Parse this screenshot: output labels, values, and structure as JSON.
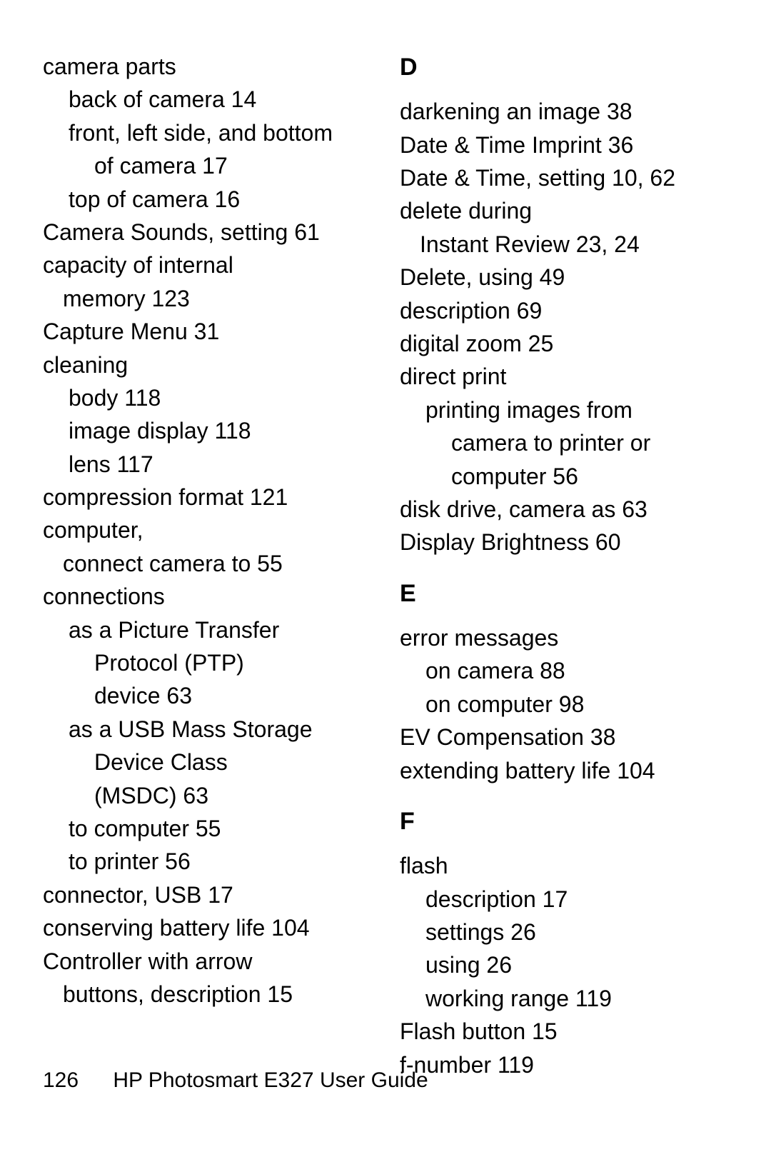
{
  "footer": {
    "page": "126",
    "title": "HP Photosmart E327 User Guide"
  },
  "left": [
    {
      "t": "camera parts",
      "cls": ""
    },
    {
      "t": "back of camera  14",
      "cls": "indent1"
    },
    {
      "t": "front, left side, and bottom",
      "cls": "indent1"
    },
    {
      "t": "of camera  17",
      "cls": "indent2"
    },
    {
      "t": "top of camera  16",
      "cls": "indent1"
    },
    {
      "t": "Camera Sounds, setting  61",
      "cls": ""
    },
    {
      "t": "capacity of internal",
      "cls": ""
    },
    {
      "t": "memory  123",
      "cls": "indent1",
      "style": "padding-left:28px"
    },
    {
      "t": "Capture Menu  31",
      "cls": ""
    },
    {
      "t": "cleaning",
      "cls": ""
    },
    {
      "t": "body  118",
      "cls": "indent1"
    },
    {
      "t": "image display  118",
      "cls": "indent1"
    },
    {
      "t": "lens  117",
      "cls": "indent1"
    },
    {
      "t": "compression format  121",
      "cls": ""
    },
    {
      "t": "computer,",
      "cls": ""
    },
    {
      "t": "connect camera to  55",
      "cls": "indent1",
      "style": "padding-left:28px"
    },
    {
      "t": "connections",
      "cls": ""
    },
    {
      "t": "as a Picture Transfer",
      "cls": "indent1"
    },
    {
      "t": "Protocol (PTP)",
      "cls": "indent2"
    },
    {
      "t": "device  63",
      "cls": "indent2"
    },
    {
      "t": "as a USB Mass Storage",
      "cls": "indent1"
    },
    {
      "t": "Device Class",
      "cls": "indent2"
    },
    {
      "t": "(MSDC)  63",
      "cls": "indent2"
    },
    {
      "t": "to computer  55",
      "cls": "indent1"
    },
    {
      "t": "to printer  56",
      "cls": "indent1"
    },
    {
      "t": "connector, USB  17",
      "cls": ""
    },
    {
      "t": "conserving battery life  104",
      "cls": ""
    },
    {
      "t": "Controller with arrow",
      "cls": ""
    },
    {
      "t": "buttons, description  15",
      "cls": "indent1",
      "style": "padding-left:28px"
    }
  ],
  "right": [
    {
      "head": "D",
      "first": true
    },
    {
      "t": "darkening an image  38",
      "cls": ""
    },
    {
      "t": "Date & Time Imprint  36",
      "cls": ""
    },
    {
      "t": "Date & Time, setting  10,  62",
      "cls": ""
    },
    {
      "t": "delete during",
      "cls": ""
    },
    {
      "t": "Instant Review  23,  24",
      "cls": "indent1",
      "style": "padding-left:28px"
    },
    {
      "t": "Delete, using  49",
      "cls": ""
    },
    {
      "t": "description  69",
      "cls": ""
    },
    {
      "t": "digital zoom  25",
      "cls": ""
    },
    {
      "t": "direct print",
      "cls": ""
    },
    {
      "t": "printing images from",
      "cls": "indent1"
    },
    {
      "t": "camera to printer or",
      "cls": "indent2"
    },
    {
      "t": "computer  56",
      "cls": "indent2"
    },
    {
      "t": "disk drive, camera as  63",
      "cls": ""
    },
    {
      "t": "Display Brightness  60",
      "cls": ""
    },
    {
      "head": "E"
    },
    {
      "t": "error messages",
      "cls": ""
    },
    {
      "t": "on camera  88",
      "cls": "indent1"
    },
    {
      "t": "on computer  98",
      "cls": "indent1"
    },
    {
      "t": "EV Compensation  38",
      "cls": ""
    },
    {
      "t": "extending battery life  104",
      "cls": ""
    },
    {
      "head": "F"
    },
    {
      "t": "flash",
      "cls": ""
    },
    {
      "t": "description  17",
      "cls": "indent1"
    },
    {
      "t": "settings  26",
      "cls": "indent1"
    },
    {
      "t": "using  26",
      "cls": "indent1"
    },
    {
      "t": "working range  119",
      "cls": "indent1"
    },
    {
      "t": "Flash button  15",
      "cls": ""
    },
    {
      "t": "f-number  119",
      "cls": ""
    }
  ]
}
